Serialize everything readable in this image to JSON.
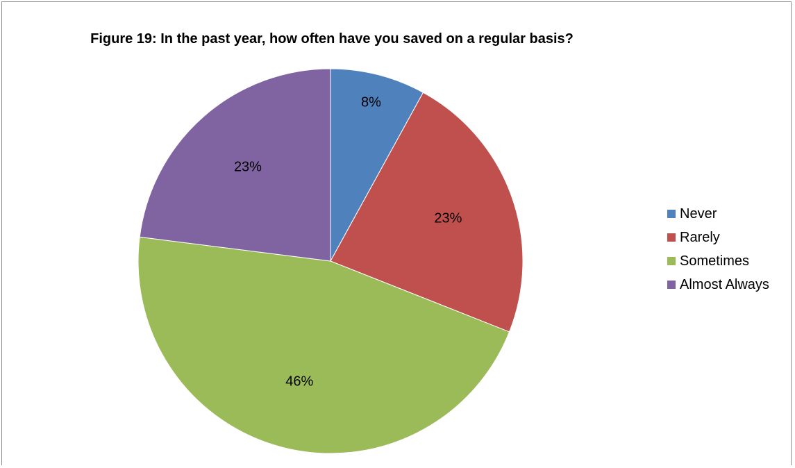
{
  "chart_data": {
    "type": "pie",
    "title": "Figure 19: In the past year, how often have you saved on a regular basis?",
    "categories": [
      "Never",
      "Rarely",
      "Sometimes",
      "Almost Always"
    ],
    "values": [
      8,
      23,
      46,
      23
    ],
    "data_labels": [
      "8%",
      "23%",
      "46%",
      "23%"
    ],
    "colors": [
      "#4f81bd",
      "#c0504d",
      "#9bbb59",
      "#8064a2"
    ],
    "legend_position": "right"
  }
}
